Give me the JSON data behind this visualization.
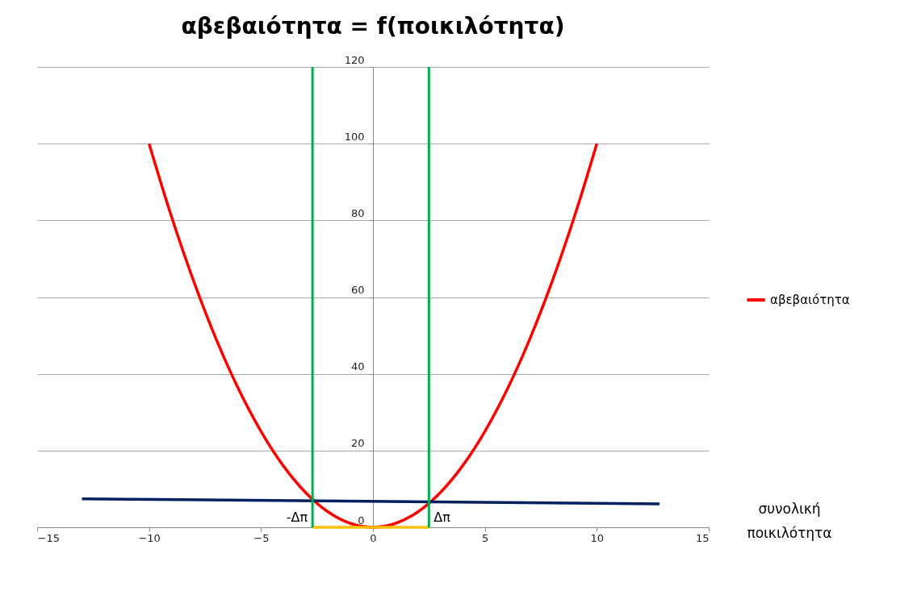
{
  "chart_data": {
    "type": "line",
    "title": "αβεβαιότητα = f(ποικιλότητα)",
    "xlabel": "συνολική ποικιλότητα",
    "xlim": [
      -15,
      15
    ],
    "xticks": [
      -15,
      -10,
      -5,
      0,
      5,
      10,
      15
    ],
    "ylim": [
      0,
      120
    ],
    "yticks": [
      0,
      20,
      40,
      60,
      80,
      100,
      120
    ],
    "grid": "y",
    "legend": "right",
    "series": [
      {
        "name": "αβεβαιότητα",
        "color": "#ff0000",
        "x": [
          -10,
          -9,
          -8,
          -7,
          -6,
          -5,
          -4,
          -3,
          -2,
          -1,
          0,
          1,
          2,
          3,
          4,
          5,
          6,
          7,
          8,
          9,
          10
        ],
        "values": [
          100,
          81,
          64,
          49,
          36,
          25,
          16,
          9,
          4,
          1,
          0,
          1,
          4,
          9,
          16,
          25,
          36,
          49,
          64,
          81,
          100
        ]
      },
      {
        "color": "#002060",
        "x": [
          -13.0,
          12.8
        ],
        "values": [
          7.4,
          6.1
        ]
      },
      {
        "color": "#ffc000",
        "x": [
          -2.7,
          2.5
        ],
        "values": [
          0,
          0
        ]
      }
    ],
    "ref_lines": [
      {
        "axis": "x",
        "value": -2.7,
        "label": "-Δπ",
        "color": "#00b050"
      },
      {
        "axis": "x",
        "value": 2.5,
        "label": "Δπ",
        "color": "#00b050"
      }
    ]
  }
}
